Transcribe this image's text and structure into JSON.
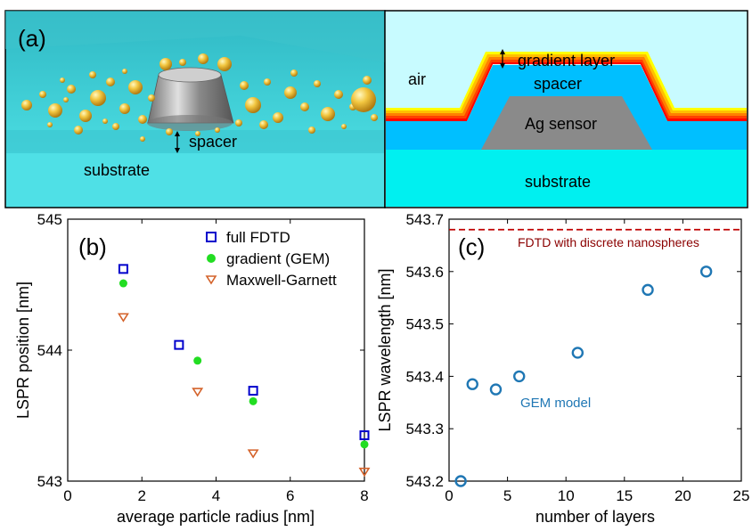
{
  "panel_a": {
    "label": "(a)",
    "left_labels": {
      "spacer": "spacer",
      "substrate": "substrate"
    },
    "right_labels": {
      "air": "air",
      "gradient": "gradient layer",
      "spacer": "spacer",
      "sensor": "Ag sensor",
      "substrate": "substrate"
    },
    "colors": {
      "water": "#40d0d8",
      "substrate": "#00f0f0",
      "spacer": "#00bfff",
      "air": "#c8fbff",
      "sensor": "#8a8a8a",
      "gradient": [
        "#ff0000",
        "#ff4000",
        "#ff8000",
        "#ffc000",
        "#ffff00"
      ]
    }
  },
  "chart_data": [
    {
      "type": "scatter",
      "panel_label": "(b)",
      "xlabel": "average particle radius [nm]",
      "ylabel": "LSPR position [nm]",
      "xlim": [
        0,
        8
      ],
      "ylim": [
        543,
        545
      ],
      "xticks": [
        "0",
        "2",
        "4",
        "6",
        "8"
      ],
      "yticks": [
        "543",
        "544",
        "545"
      ],
      "grid": false,
      "legend_position": "top-right",
      "series": [
        {
          "name": "full FDTD",
          "marker": "square-open",
          "color": "#0000cc",
          "x": [
            1.5,
            3,
            5,
            8
          ],
          "y": [
            544.62,
            544.04,
            543.69,
            543.35
          ]
        },
        {
          "name": "gradient (GEM)",
          "marker": "circle-filled",
          "color": "#22dd22",
          "x": [
            1.5,
            3.5,
            5,
            8
          ],
          "y": [
            544.51,
            543.92,
            543.61,
            543.28
          ]
        },
        {
          "name": "Maxwell-Garnett",
          "marker": "triangle-down-open",
          "color": "#d4622a",
          "x": [
            1.5,
            3.5,
            5,
            8
          ],
          "y": [
            544.25,
            543.68,
            543.21,
            543.07
          ]
        }
      ]
    },
    {
      "type": "scatter",
      "panel_label": "(c)",
      "xlabel": "number of layers",
      "ylabel": "LSPR wavelength [nm]",
      "xlim": [
        0,
        25
      ],
      "ylim": [
        543.2,
        543.7
      ],
      "xticks": [
        "0",
        "5",
        "10",
        "15",
        "20",
        "25"
      ],
      "yticks": [
        "543.2",
        "543.3",
        "543.4",
        "543.5",
        "543.6",
        "543.7"
      ],
      "grid": false,
      "reference_line": {
        "label": "FDTD with discrete nanospheres",
        "y": 543.68,
        "color": "#8b0000"
      },
      "series": [
        {
          "label": "GEM model",
          "marker": "circle-open",
          "color": "#1f77b4",
          "x": [
            1,
            2,
            4,
            6,
            11,
            17,
            22
          ],
          "y": [
            543.2,
            543.385,
            543.375,
            543.4,
            543.445,
            543.565,
            543.6
          ]
        }
      ]
    }
  ]
}
